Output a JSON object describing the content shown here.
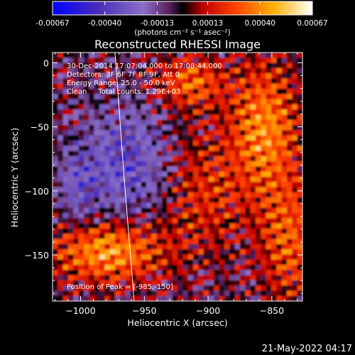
{
  "colorbar": {
    "tick_labels": [
      "-0.00067",
      "-0.00040",
      "-0.00013",
      "0.00013",
      "0.00040",
      "0.00067"
    ],
    "tick_values": [
      -0.00067,
      -0.0004,
      -0.00013,
      0.00013,
      0.0004,
      0.00067
    ],
    "range": [
      -0.00067,
      0.00067
    ],
    "units_label": "(photons cm⁻² s⁻¹ asec⁻²)"
  },
  "chart_data": {
    "type": "heatmap",
    "title": "Reconstructed RHESSI Image",
    "xlabel": "Heliocentric X (arcsec)",
    "ylabel": "Heliocentric Y (arcsec)",
    "xlim": [
      -1022,
      -826
    ],
    "ylim": [
      -186,
      8
    ],
    "x_ticks": [
      -1000,
      -950,
      -900,
      -850
    ],
    "x_tick_labels": [
      "−1000",
      "−950",
      "−900",
      "−850"
    ],
    "y_ticks": [
      0,
      -50,
      -100,
      -150
    ],
    "y_tick_labels": [
      "0",
      "−50",
      "−100",
      "−150"
    ],
    "grid": false,
    "limb_curve": {
      "x": [
        -973,
        -966,
        -958
      ],
      "y": [
        8,
        -88,
        -186
      ]
    },
    "annotations": {
      "time_range": "30-Dec-2014 17:07:04.000 to 17:08:44.000",
      "detectors": "Detectors: 3F 6F 7F 8F 9F, Att 0",
      "energy": "Energy Range: 25.0 - 50.0 keV",
      "method": "Clean     Total counts: 1.29E+03",
      "peak": "Position of Peak = [-985,-150]"
    },
    "peak_position": [
      -985,
      -150
    ]
  },
  "timestamp": "21-May-2022 04:17",
  "colors": {
    "background": "#000000",
    "foreground": "#ffffff",
    "colorbar_stops": [
      "#0000ff",
      "#4b2fb8",
      "#8a6fc8",
      "#5a1e5a",
      "#000000",
      "#c00000",
      "#ff4000",
      "#ffb000",
      "#ffffff"
    ]
  }
}
